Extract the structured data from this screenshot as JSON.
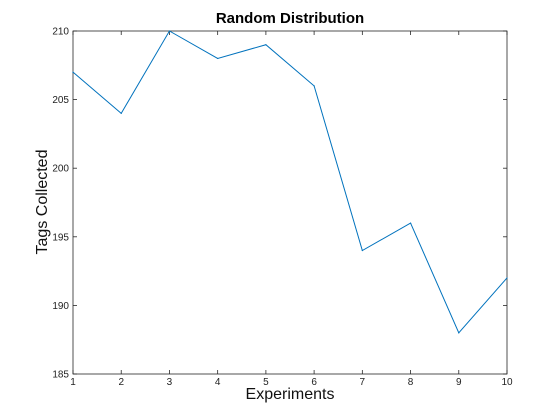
{
  "chart_data": {
    "type": "line",
    "title": "Random Distribution",
    "xlabel": "Experiments",
    "ylabel": "Tags Collected",
    "x": [
      1,
      2,
      3,
      4,
      5,
      6,
      7,
      8,
      9,
      10
    ],
    "xticks": [
      1,
      2,
      3,
      4,
      5,
      6,
      7,
      8,
      9,
      10
    ],
    "yticks": [
      185,
      190,
      195,
      200,
      205,
      210
    ],
    "xlim": [
      1,
      10
    ],
    "ylim": [
      185,
      210
    ],
    "grid": false,
    "series": [
      {
        "values": [
          207,
          204,
          210,
          208,
          209,
          206,
          194,
          196,
          188,
          192
        ],
        "color": "#0072BD"
      }
    ]
  }
}
